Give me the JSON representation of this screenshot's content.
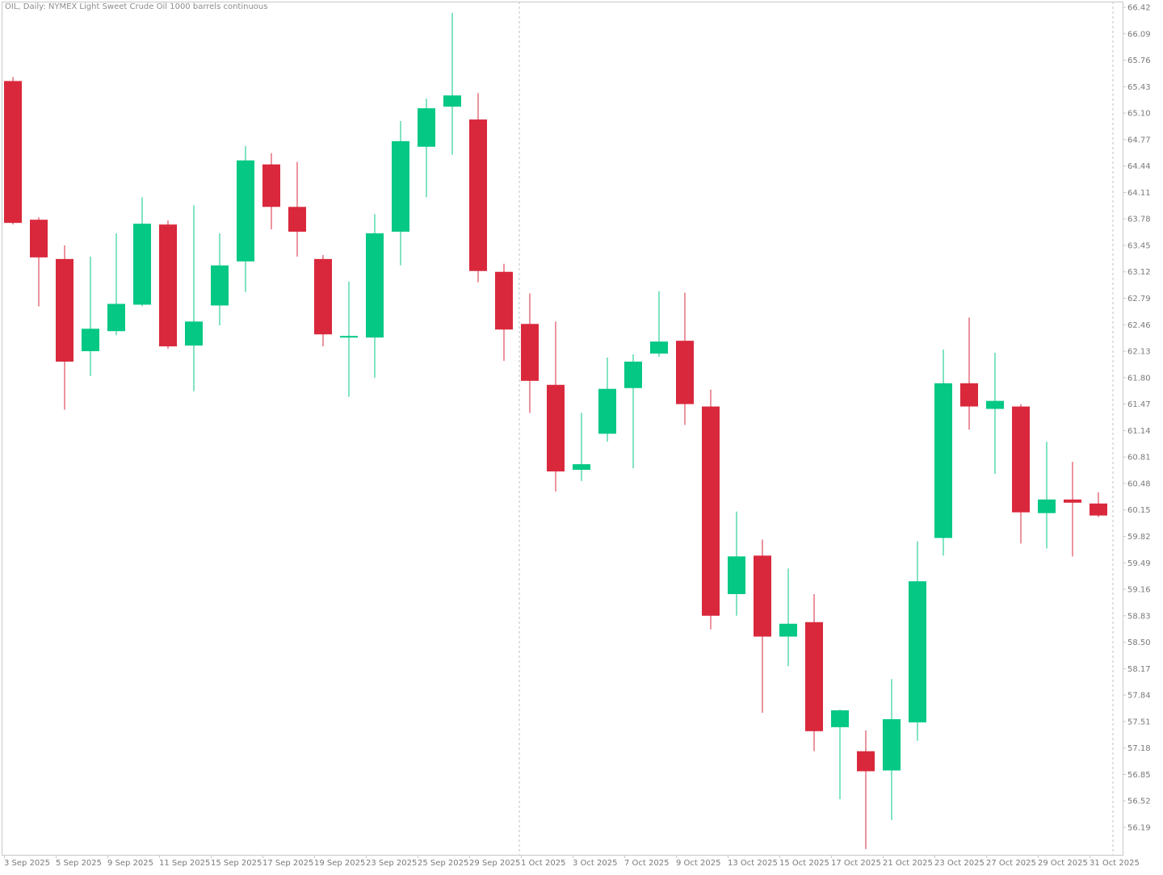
{
  "window": {
    "title": "OIL, Daily:  NYMEX Light Sweet Crude Oil 1000 barrels continuous"
  },
  "colors": {
    "bull": "#04c884",
    "bear": "#d9283c",
    "axis": "#c8c8c8",
    "grid_separator": "#c0c0c0",
    "text": "#7a7a7a"
  },
  "chart_data": {
    "type": "candlestick",
    "symbol": "OIL",
    "timeframe": "Daily",
    "grid": false,
    "price_axis_side": "right",
    "y_ticks": [
      "66.42",
      "66.09",
      "65.76",
      "65.43",
      "65.10",
      "64.77",
      "64.44",
      "64.11",
      "63.78",
      "63.45",
      "63.12",
      "62.79",
      "62.46",
      "62.13",
      "61.80",
      "61.47",
      "61.14",
      "60.81",
      "60.48",
      "60.15",
      "59.82",
      "59.49",
      "59.16",
      "58.83",
      "58.50",
      "58.17",
      "57.84",
      "57.51",
      "57.18",
      "56.85",
      "56.52",
      "56.19"
    ],
    "x_labels": [
      "3 Sep 2025",
      "5 Sep 2025",
      "9 Sep 2025",
      "11 Sep 2025",
      "15 Sep 2025",
      "17 Sep 2025",
      "19 Sep 2025",
      "23 Sep 2025",
      "25 Sep 2025",
      "29 Sep 2025",
      "1 Oct 2025",
      "3 Oct 2025",
      "7 Oct 2025",
      "9 Oct 2025",
      "13 Oct 2025",
      "15 Oct 2025",
      "17 Oct 2025",
      "21 Oct 2025",
      "23 Oct 2025",
      "27 Oct 2025",
      "29 Oct 2025",
      "31 Oct 2025"
    ],
    "period_separator_after": "30 Sep 2025",
    "candles": [
      {
        "date": "3 Sep 2025",
        "open": 65.5,
        "high": 65.55,
        "low": 63.71,
        "close": 63.73
      },
      {
        "date": "4 Sep 2025",
        "open": 63.77,
        "high": 63.8,
        "low": 62.69,
        "close": 63.3
      },
      {
        "date": "5 Sep 2025",
        "open": 63.28,
        "high": 63.45,
        "low": 61.4,
        "close": 62.0
      },
      {
        "date": "8 Sep 2025",
        "open": 62.13,
        "high": 63.31,
        "low": 61.82,
        "close": 62.41
      },
      {
        "date": "9 Sep 2025",
        "open": 62.38,
        "high": 63.6,
        "low": 62.33,
        "close": 62.72
      },
      {
        "date": "10 Sep 2025",
        "open": 62.71,
        "high": 64.05,
        "low": 62.69,
        "close": 63.72
      },
      {
        "date": "11 Sep 2025",
        "open": 63.71,
        "high": 63.76,
        "low": 62.16,
        "close": 62.19
      },
      {
        "date": "12 Sep 2025",
        "open": 62.2,
        "high": 63.95,
        "low": 61.63,
        "close": 62.5
      },
      {
        "date": "15 Sep 2025",
        "open": 62.7,
        "high": 63.6,
        "low": 62.45,
        "close": 63.2
      },
      {
        "date": "16 Sep 2025",
        "open": 63.25,
        "high": 64.69,
        "low": 62.87,
        "close": 64.51
      },
      {
        "date": "17 Sep 2025",
        "open": 64.46,
        "high": 64.6,
        "low": 63.65,
        "close": 63.93
      },
      {
        "date": "18 Sep 2025",
        "open": 63.93,
        "high": 64.49,
        "low": 63.31,
        "close": 63.62
      },
      {
        "date": "19 Sep 2025",
        "open": 63.28,
        "high": 63.33,
        "low": 62.19,
        "close": 62.34
      },
      {
        "date": "22 Sep 2025",
        "open": 62.31,
        "high": 63.0,
        "low": 61.56,
        "close": 62.32
      },
      {
        "date": "23 Sep 2025",
        "open": 62.3,
        "high": 63.84,
        "low": 61.8,
        "close": 63.6
      },
      {
        "date": "24 Sep 2025",
        "open": 63.62,
        "high": 65.0,
        "low": 63.2,
        "close": 64.75
      },
      {
        "date": "25 Sep 2025",
        "open": 64.68,
        "high": 65.28,
        "low": 64.05,
        "close": 65.16
      },
      {
        "date": "26 Sep 2025",
        "open": 65.18,
        "high": 66.35,
        "low": 64.58,
        "close": 65.32
      },
      {
        "date": "29 Sep 2025",
        "open": 65.02,
        "high": 65.35,
        "low": 62.99,
        "close": 63.13
      },
      {
        "date": "30 Sep 2025",
        "open": 63.12,
        "high": 63.22,
        "low": 62.01,
        "close": 62.4
      },
      {
        "date": "1 Oct 2025",
        "open": 62.47,
        "high": 62.85,
        "low": 61.36,
        "close": 61.76
      },
      {
        "date": "2 Oct 2025",
        "open": 61.71,
        "high": 62.5,
        "low": 60.38,
        "close": 60.63
      },
      {
        "date": "3 Oct 2025",
        "open": 60.65,
        "high": 61.36,
        "low": 60.51,
        "close": 60.72
      },
      {
        "date": "6 Oct 2025",
        "open": 61.1,
        "high": 62.05,
        "low": 61.0,
        "close": 61.66
      },
      {
        "date": "7 Oct 2025",
        "open": 61.67,
        "high": 62.09,
        "low": 60.67,
        "close": 62.0
      },
      {
        "date": "8 Oct 2025",
        "open": 62.1,
        "high": 62.88,
        "low": 62.06,
        "close": 62.25
      },
      {
        "date": "9 Oct 2025",
        "open": 62.26,
        "high": 62.86,
        "low": 61.21,
        "close": 61.47
      },
      {
        "date": "10 Oct 2025",
        "open": 61.44,
        "high": 61.65,
        "low": 58.66,
        "close": 58.83
      },
      {
        "date": "13 Oct 2025",
        "open": 59.1,
        "high": 60.13,
        "low": 58.83,
        "close": 59.57
      },
      {
        "date": "14 Oct 2025",
        "open": 59.58,
        "high": 59.78,
        "low": 57.62,
        "close": 58.57
      },
      {
        "date": "15 Oct 2025",
        "open": 58.57,
        "high": 59.42,
        "low": 58.2,
        "close": 58.73
      },
      {
        "date": "16 Oct 2025",
        "open": 58.75,
        "high": 59.1,
        "low": 57.14,
        "close": 57.39
      },
      {
        "date": "17 Oct 2025",
        "open": 57.44,
        "high": 57.66,
        "low": 56.54,
        "close": 57.65
      },
      {
        "date": "20 Oct 2025",
        "open": 57.14,
        "high": 57.4,
        "low": 55.92,
        "close": 56.89
      },
      {
        "date": "21 Oct 2025",
        "open": 56.9,
        "high": 58.04,
        "low": 56.28,
        "close": 57.54
      },
      {
        "date": "22 Oct 2025",
        "open": 57.5,
        "high": 59.76,
        "low": 57.27,
        "close": 59.26
      },
      {
        "date": "23 Oct 2025",
        "open": 59.8,
        "high": 62.15,
        "low": 59.58,
        "close": 61.73
      },
      {
        "date": "24 Oct 2025",
        "open": 61.73,
        "high": 62.55,
        "low": 61.15,
        "close": 61.44
      },
      {
        "date": "27 Oct 2025",
        "open": 61.41,
        "high": 62.11,
        "low": 60.6,
        "close": 61.51
      },
      {
        "date": "28 Oct 2025",
        "open": 61.44,
        "high": 61.47,
        "low": 59.73,
        "close": 60.12
      },
      {
        "date": "29 Oct 2025",
        "open": 60.11,
        "high": 61.0,
        "low": 59.67,
        "close": 60.28
      },
      {
        "date": "30 Oct 2025",
        "open": 60.28,
        "high": 60.75,
        "low": 59.57,
        "close": 60.24
      },
      {
        "date": "31 Oct 2025",
        "open": 60.23,
        "high": 60.37,
        "low": 60.06,
        "close": 60.08
      }
    ]
  }
}
